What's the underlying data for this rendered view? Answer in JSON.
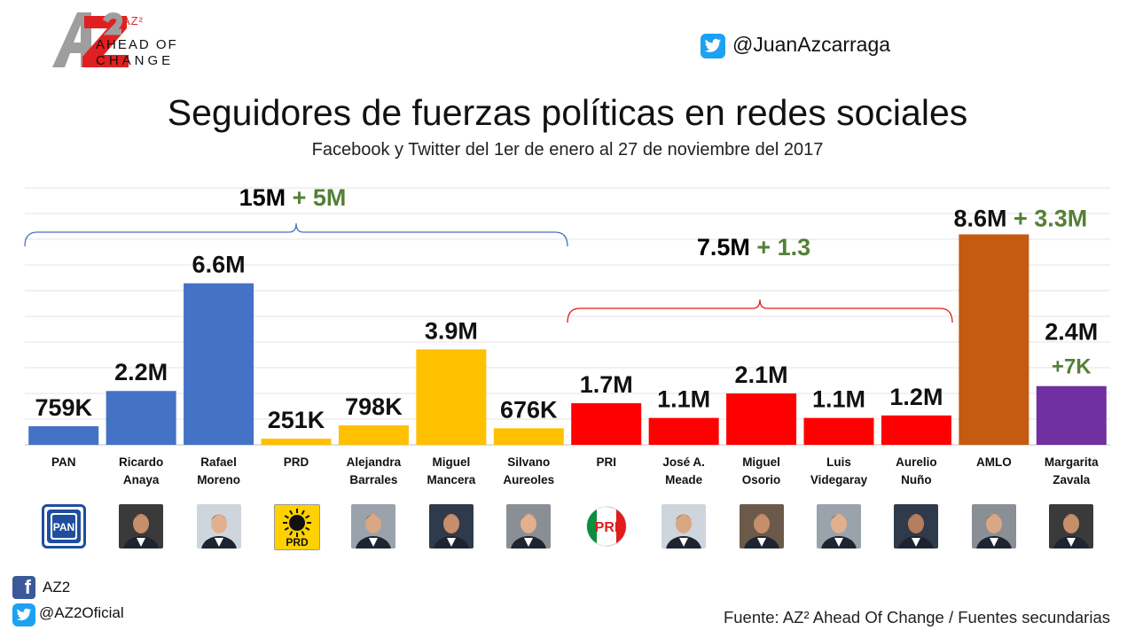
{
  "logo": {
    "badge": "AZ²",
    "line1": "AHEAD OF",
    "line2": "CHANGE",
    "mark": "AZ2"
  },
  "header": {
    "twitter_handle": "@JuanAzcarraga"
  },
  "footer": {
    "facebook_name": "AZ2",
    "twitter_handle": "@AZ2Oficial",
    "source": "Fuente: AZ² Ahead Of Change / Fuentes secundarias"
  },
  "groups": [
    {
      "base": "15M",
      "extra": "+ 5M",
      "color": "#4472c4"
    },
    {
      "base": "7.5M",
      "extra": "+ 1.3",
      "color": "#e41b17"
    }
  ],
  "chart_data": {
    "type": "bar",
    "title": "Seguidores de fuerzas políticas en redes sociales",
    "subtitle": "Facebook y Twitter del 1er de enero al 27 de noviembre del 2017",
    "categories": [
      "PAN",
      "Ricardo Anaya",
      "Rafael Moreno",
      "PRD",
      "Alejandra Barrales",
      "Miguel Mancera",
      "Silvano Aureoles",
      "PRI",
      "José A. Meade",
      "Miguel Osorio",
      "Luis Videgaray",
      "Aurelio Nuño",
      "AMLO",
      "Margarita Zavala"
    ],
    "category_lines": [
      [
        "PAN"
      ],
      [
        "Ricardo",
        "Anaya"
      ],
      [
        "Rafael",
        "Moreno"
      ],
      [
        "PRD"
      ],
      [
        "Alejandra",
        "Barrales"
      ],
      [
        "Miguel",
        "Mancera"
      ],
      [
        "Silvano",
        "Aureoles"
      ],
      [
        "PRI"
      ],
      [
        "José A.",
        "Meade"
      ],
      [
        "Miguel",
        "Osorio"
      ],
      [
        "Luis",
        "Videgaray"
      ],
      [
        "Aurelio",
        "Nuño"
      ],
      [
        "AMLO"
      ],
      [
        "Margarita",
        "Zavala"
      ]
    ],
    "values": [
      0.759,
      2.2,
      6.6,
      0.251,
      0.798,
      3.9,
      0.676,
      1.7,
      1.1,
      2.1,
      1.1,
      1.2,
      8.6,
      2.4
    ],
    "units": "millions of followers",
    "labels": [
      "759K",
      "2.2M",
      "6.6M",
      "251K",
      "798K",
      "3.9M",
      "676K",
      "1.7M",
      "1.1M",
      "2.1M",
      "1.1M",
      "1.2M",
      "8.6M",
      "2.4M"
    ],
    "extra_labels": [
      "",
      "",
      "",
      "",
      "",
      "",
      "",
      "",
      "",
      "",
      "",
      "",
      "+ 3.3M",
      "+7K"
    ],
    "colors": [
      "#4472c4",
      "#4472c4",
      "#4472c4",
      "#ffc000",
      "#ffc000",
      "#ffc000",
      "#ffc000",
      "#ff0000",
      "#ff0000",
      "#ff0000",
      "#ff0000",
      "#ff0000",
      "#c55a11",
      "#7030a0"
    ],
    "ylim": [
      0,
      10.5
    ],
    "grid": true,
    "legend": "none"
  },
  "photos": [
    "pan-logo",
    "anaya",
    "moreno",
    "prd-logo",
    "barrales",
    "mancera",
    "aureoles",
    "pri-logo",
    "meade",
    "osorio",
    "videgaray",
    "nuno",
    "amlo",
    "zavala"
  ]
}
